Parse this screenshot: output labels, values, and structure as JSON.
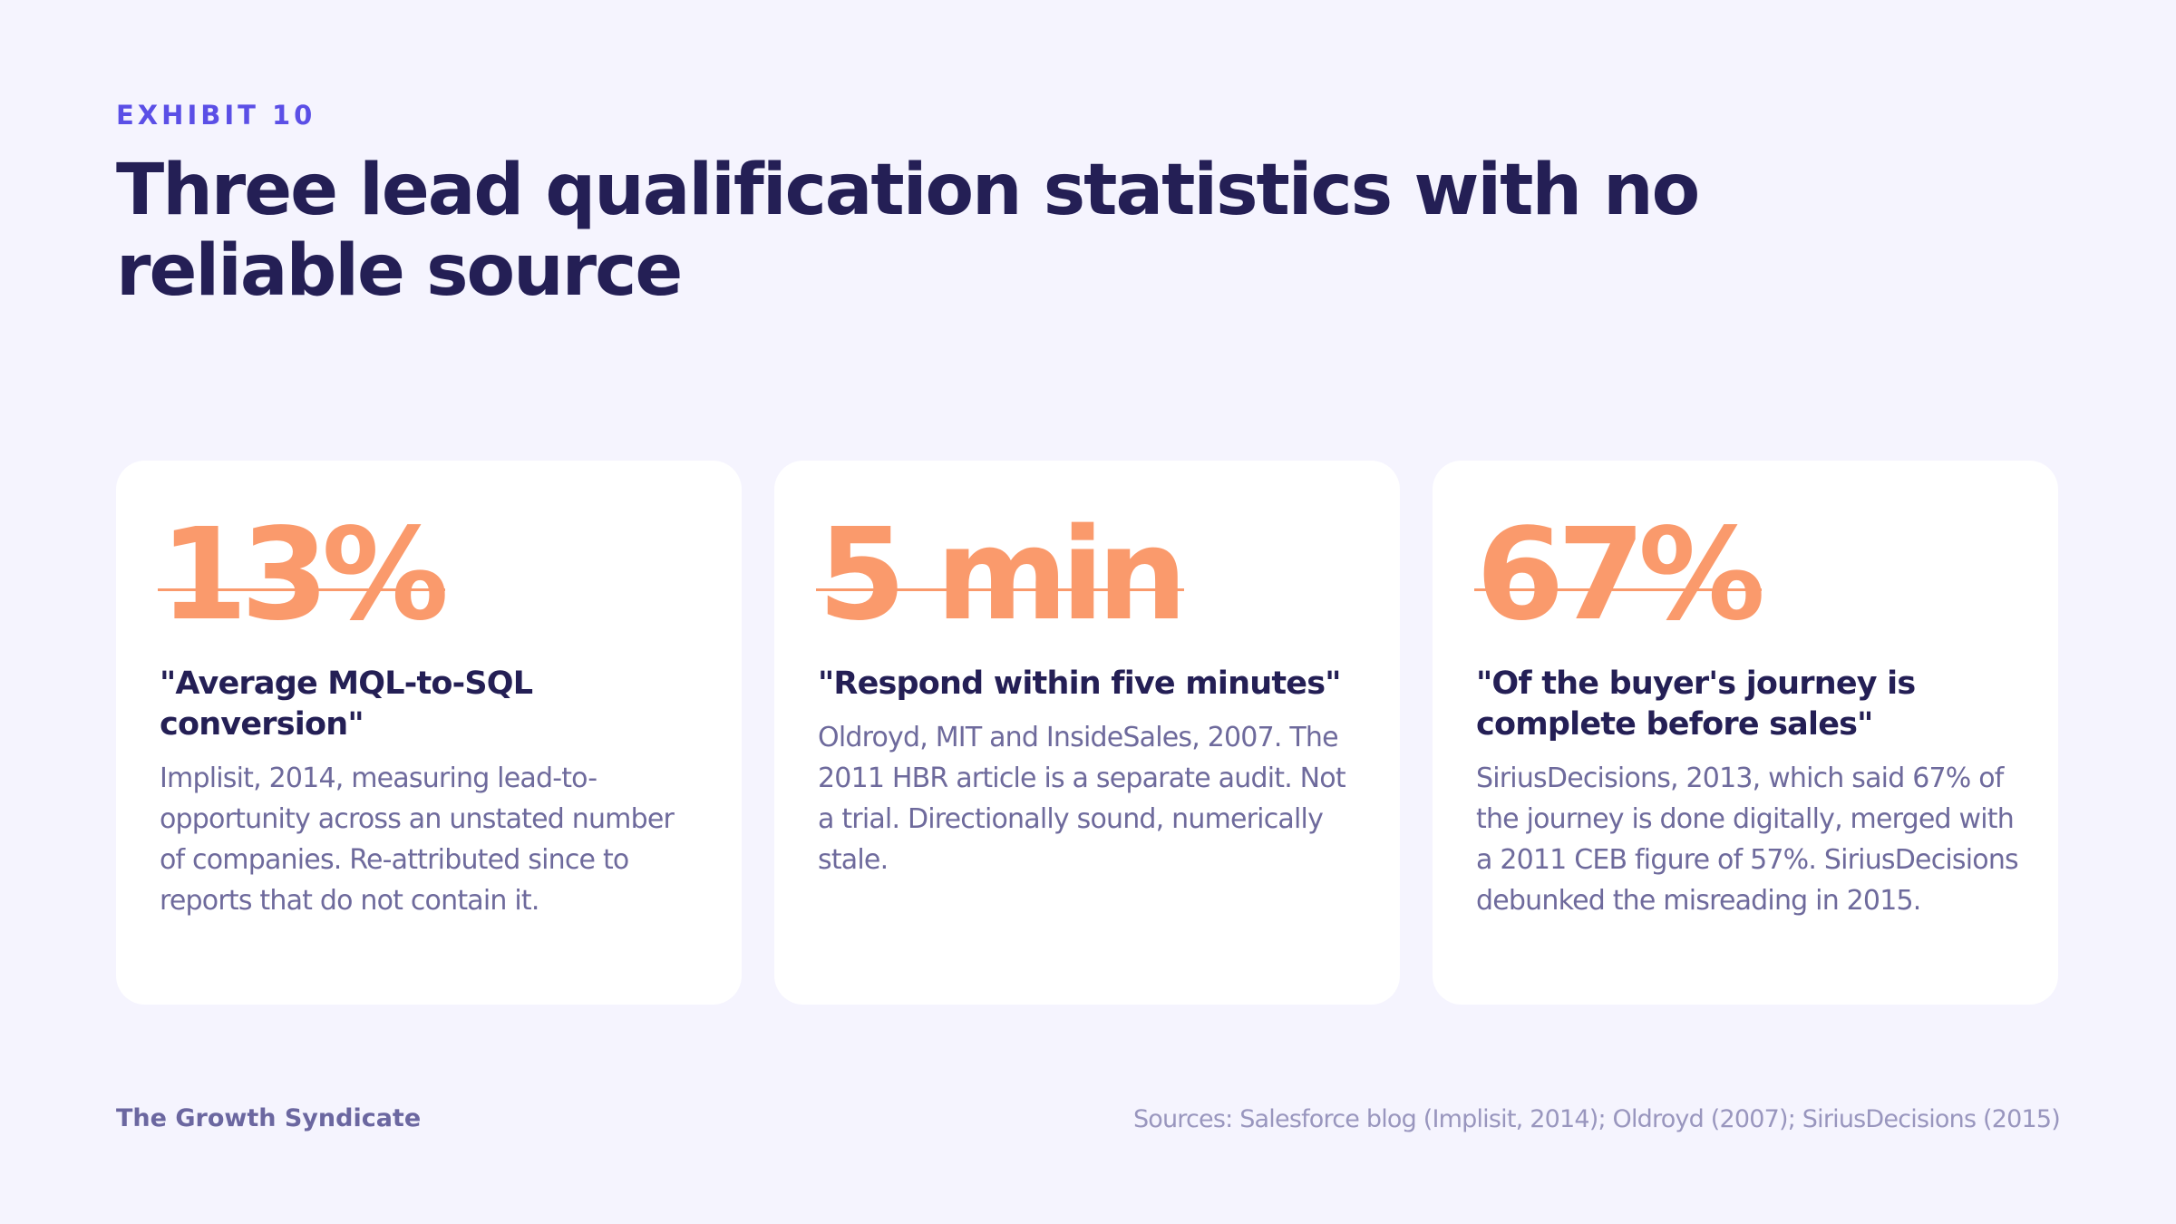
{
  "header": {
    "eyebrow": "EXHIBIT 10",
    "title": "Three lead qualification statistics with no reliable source"
  },
  "cards": [
    {
      "stat": "13%",
      "quote": "\"Average MQL-to-SQL conversion\"",
      "body": "Implisit, 2014, measuring lead-to-opportunity across an unstated number of companies. Re-attributed since to reports that do not contain it."
    },
    {
      "stat": "5 min",
      "quote": "\"Respond within five minutes\"",
      "body": "Oldroyd, MIT and InsideSales, 2007. The 2011 HBR article is a separate audit. Not a trial. Directionally sound, numerically stale."
    },
    {
      "stat": "67%",
      "quote": "\"Of the buyer's journey is complete before sales\"",
      "body": "SiriusDecisions, 2013, which said 67% of the journey is done digitally, merged with a 2011 CEB figure of 57%. SiriusDecisions debunked the misreading in 2015."
    }
  ],
  "footer": {
    "brand": "The Growth Syndicate",
    "sources": "Sources: Salesforce blog (Implisit, 2014); Oldroyd (2007); SiriusDecisions (2015)"
  },
  "colors": {
    "background": "#F5F4FE",
    "accent": "#5B4FE6",
    "heading": "#241F55",
    "stat": "#FA9A6C",
    "body_text": "#6E6A9C",
    "card": "#FFFFFF"
  }
}
